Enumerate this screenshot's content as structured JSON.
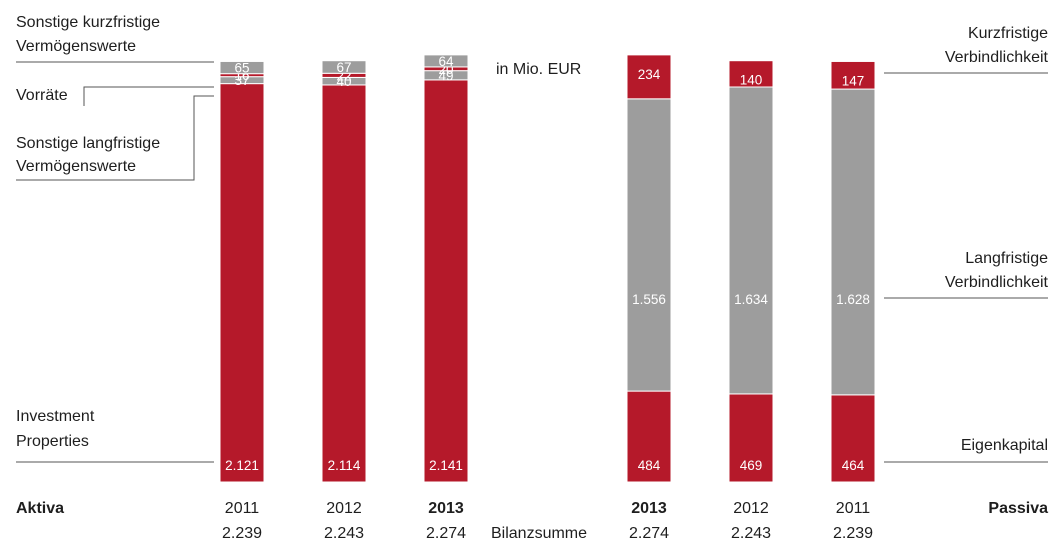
{
  "chart_data": {
    "type": "bar",
    "unit_label": "in Mio. EUR",
    "colors": {
      "red": "#b5192a",
      "grey": "#9d9d9d",
      "line": "#555555"
    },
    "aktiva": {
      "title": "Aktiva",
      "categories": [
        "2011",
        "2012",
        "2013"
      ],
      "highlight": "2013",
      "totals": [
        "2.239",
        "2.243",
        "2.274"
      ],
      "series": [
        {
          "name": "Investment Properties",
          "color": "red",
          "values": [
            2121,
            2114,
            2141
          ],
          "value_labels": [
            "2.121",
            "2.114",
            "2.141"
          ]
        },
        {
          "name": "Sonstige langfristige Vermögenswerte",
          "color": "grey",
          "values": [
            37,
            40,
            49
          ],
          "value_labels": [
            "37",
            "40",
            "49"
          ]
        },
        {
          "name": "Vorräte",
          "color": "red",
          "values": [
            16,
            22,
            20
          ],
          "value_labels": [
            "16",
            "22",
            "20"
          ]
        },
        {
          "name": "Sonstige kurzfristige Vermögenswerte",
          "color": "grey",
          "values": [
            65,
            67,
            64
          ],
          "value_labels": [
            "65",
            "67",
            "64"
          ]
        }
      ],
      "legend_labels": {
        "sonstige_kurzfristige": [
          "Sonstige kurzfristige",
          "Vermögenswerte"
        ],
        "vorraete": [
          "Vorräte"
        ],
        "sonstige_langfristige": [
          "Sonstige langfristige",
          "Vermögenswerte"
        ],
        "investment": [
          "Investment",
          "Properties"
        ]
      }
    },
    "passiva": {
      "title": "Passiva",
      "categories": [
        "2013",
        "2012",
        "2011"
      ],
      "highlight": "2013",
      "totals": [
        "2.274",
        "2.243",
        "2.239"
      ],
      "series": [
        {
          "name": "Eigenkapital",
          "color": "red",
          "values": [
            484,
            469,
            464
          ],
          "value_labels": [
            "484",
            "469",
            "464"
          ]
        },
        {
          "name": "Langfristige Verbindlichkeit",
          "color": "grey",
          "values": [
            1556,
            1634,
            1628
          ],
          "value_labels": [
            "1.556",
            "1.634",
            "1.628"
          ]
        },
        {
          "name": "Kurzfristige Verbindlichkeit",
          "color": "red",
          "values": [
            234,
            140,
            147
          ],
          "value_labels": [
            "234",
            "140",
            "147"
          ]
        }
      ],
      "legend_labels": {
        "kurzfristige": [
          "Kurzfristige",
          "Verbindlichkeit"
        ],
        "langfristige": [
          "Langfristige",
          "Verbindlichkeit"
        ],
        "eigenkapital": [
          "Eigenkapital"
        ]
      }
    },
    "total_label": "Bilanzsumme"
  }
}
